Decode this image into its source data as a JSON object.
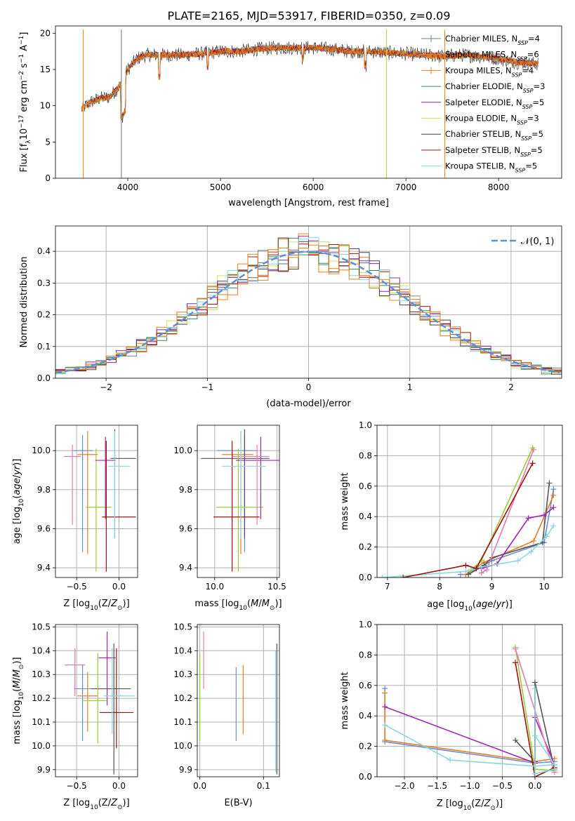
{
  "figure_title": "PLATE=2165, MJD=53917, FIBERID=0350, z=0.09",
  "colors": {
    "grid": "#b0b0b0",
    "gauss": "#5b8fd8",
    "series": [
      "#708090",
      "#ff7f0e",
      "#e67e22",
      "#2e8b57",
      "#8e24aa",
      "#d4e157",
      "#444444",
      "#a01010",
      "#7fd8e0"
    ],
    "model": [
      "#6a8fd0",
      "#e67e22",
      "#555555",
      "#9acd32",
      "#9c27b0",
      "#e07cb0",
      "#a01010",
      "#88d8dc"
    ]
  },
  "legend": [
    {
      "label": "Chabrier MILES, N_SSP=4"
    },
    {
      "label": "Salpeter MILES, N_SSP=6"
    },
    {
      "label": "Kroupa MILES, N_SSP=4"
    },
    {
      "label": "Chabrier ELODIE, N_SSP=3"
    },
    {
      "label": "Salpeter ELODIE, N_SSP=5"
    },
    {
      "label": "Kroupa ELODIE, N_SSP=3"
    },
    {
      "label": "Chabrier STELIB, N_SSP=5"
    },
    {
      "label": "Salpeter STELIB, N_SSP=5"
    },
    {
      "label": "Kroupa STELIB, N_SSP=5"
    }
  ],
  "legend_text": [
    {
      "pre": "Chabrier MILES, N",
      "sub": "SSP",
      "post": "=4"
    },
    {
      "pre": "Salpeter MILES, N",
      "sub": "SSP",
      "post": "=6"
    },
    {
      "pre": "Kroupa MILES, N",
      "sub": "SSP",
      "post": "=4"
    },
    {
      "pre": "Chabrier ELODIE, N",
      "sub": "SSP",
      "post": "=3"
    },
    {
      "pre": "Salpeter ELODIE, N",
      "sub": "SSP",
      "post": "=5"
    },
    {
      "pre": "Kroupa ELODIE, N",
      "sub": "SSP",
      "post": "=3"
    },
    {
      "pre": "Chabrier STELIB, N",
      "sub": "SSP",
      "post": "=5"
    },
    {
      "pre": "Salpeter STELIB, N",
      "sub": "SSP",
      "post": "=5"
    },
    {
      "pre": "Kroupa STELIB, N",
      "sub": "SSP",
      "post": "=5"
    }
  ],
  "chart_data": [
    {
      "id": "spectrum",
      "type": "line",
      "xlabel": "wavelength [Angstrom, rest frame]",
      "ylabel": "Flux [f_λ 10^-17 erg cm^-2 s^-1 A^-1]",
      "xlim": [
        3220,
        8680
      ],
      "ylim": [
        0,
        21
      ],
      "xticks": [
        4000,
        5000,
        6000,
        7000,
        8000
      ],
      "yticks": [
        0,
        5,
        10,
        15,
        20
      ],
      "continuum": {
        "x": [
          3500,
          3600,
          3700,
          3800,
          3900,
          4000,
          4100,
          4200,
          4400,
          4600,
          4800,
          5000,
          5200,
          5400,
          5600,
          5800,
          6000,
          6200,
          6400,
          6600,
          6800,
          7000,
          7200,
          7400,
          7600,
          7800,
          8000,
          8200,
          8400
        ],
        "y": [
          9.5,
          10.5,
          11.0,
          11.2,
          12.5,
          15.0,
          16.5,
          17.0,
          17.0,
          17.0,
          17.2,
          17.5,
          17.5,
          17.8,
          18.0,
          18.0,
          18.0,
          17.8,
          17.5,
          17.5,
          17.3,
          17.2,
          17.0,
          16.8,
          17.0,
          16.8,
          16.5,
          16.0,
          15.8
        ]
      },
      "spikes": [
        {
          "x": 3930,
          "series": 5
        },
        {
          "x": 3931,
          "series": 0
        },
        {
          "x": 6790,
          "series": 0
        },
        {
          "x": 6792,
          "series": 5
        },
        {
          "x": 7420,
          "series": 1
        },
        {
          "x": 3520,
          "series": 1
        }
      ],
      "x_start": 3500,
      "x_end": 8430
    },
    {
      "id": "residuals",
      "type": "histogram",
      "xlabel": "(data-model)/error",
      "ylabel": "Normed distribution",
      "xlim": [
        -2.5,
        2.5
      ],
      "ylim": [
        0,
        0.48
      ],
      "xticks": [
        -2,
        -1,
        0,
        1,
        2
      ],
      "yticks": [
        0.0,
        0.1,
        0.2,
        0.3,
        0.4
      ],
      "gauss_label": "N(0,1)",
      "bin_width": 0.1
    },
    {
      "id": "age_vs_Z",
      "type": "scatter",
      "xlabel": "Z [log10(Z/Z☉)]",
      "ylabel": "age [log10(age/yr)]",
      "xlim": [
        -0.75,
        0.22
      ],
      "ylim": [
        9.35,
        10.13
      ],
      "xticks": [
        -0.5,
        0.0
      ],
      "yticks": [
        9.4,
        9.6,
        9.8,
        10.0
      ],
      "points": [
        {
          "x": -0.43,
          "xerr": [
            0.12,
            0.12
          ],
          "y": 10.0,
          "yerr": [
            0.52,
            0.08
          ],
          "color": 0
        },
        {
          "x": -0.37,
          "xerr": [
            0.12,
            0.12
          ],
          "y": 9.98,
          "yerr": [
            0.51,
            0.12
          ],
          "color": 1
        },
        {
          "x": -0.05,
          "xerr": [
            0.05,
            0.25
          ],
          "y": 9.96,
          "yerr": [
            0.41,
            0.15
          ],
          "color": 2
        },
        {
          "x": -0.27,
          "xerr": [
            0.12,
            0.18
          ],
          "y": 9.71,
          "yerr": [
            0.33,
            0.3
          ],
          "color": 3
        },
        {
          "x": -0.16,
          "xerr": [
            0.12,
            0.12
          ],
          "y": 9.95,
          "yerr": [
            0.3,
            0.12
          ],
          "color": 4
        },
        {
          "x": -0.55,
          "xerr": [
            0.1,
            0.1
          ],
          "y": 9.97,
          "yerr": [
            0.35,
            0.06
          ],
          "color": 5
        },
        {
          "x": -0.15,
          "xerr": [
            0.05,
            0.35
          ],
          "y": 9.66,
          "yerr": [
            0.28,
            0.39
          ],
          "color": 6
        },
        {
          "x": -0.05,
          "xerr": [
            0.08,
            0.18
          ],
          "y": 9.92,
          "yerr": [
            0.37,
            0.18
          ],
          "color": 7
        }
      ]
    },
    {
      "id": "age_vs_mass",
      "type": "scatter",
      "xlabel": "mass [log10(M/M☉)]",
      "ylabel": "",
      "xlim": [
        9.86,
        10.52
      ],
      "ylim": [
        9.35,
        10.13
      ],
      "xticks": [
        10.0,
        10.5
      ],
      "yticks": [
        9.4,
        9.6,
        9.8,
        10.0
      ],
      "points": [
        {
          "x": 10.24,
          "xerr": [
            0.22,
            0.1
          ],
          "y": 10.0,
          "yerr": [
            0.52,
            0.08
          ],
          "color": 0
        },
        {
          "x": 10.21,
          "xerr": [
            0.15,
            0.1
          ],
          "y": 9.98,
          "yerr": [
            0.51,
            0.12
          ],
          "color": 1
        },
        {
          "x": 10.24,
          "xerr": [
            0.35,
            0.2
          ],
          "y": 9.96,
          "yerr": [
            0.41,
            0.15
          ],
          "color": 2
        },
        {
          "x": 10.19,
          "xerr": [
            0.18,
            0.2
          ],
          "y": 9.71,
          "yerr": [
            0.33,
            0.3
          ],
          "color": 3
        },
        {
          "x": 10.37,
          "xerr": [
            0.2,
            0.15
          ],
          "y": 9.95,
          "yerr": [
            0.3,
            0.12
          ],
          "color": 4
        },
        {
          "x": 10.34,
          "xerr": [
            0.2,
            0.1
          ],
          "y": 9.97,
          "yerr": [
            0.35,
            0.06
          ],
          "color": 5
        },
        {
          "x": 10.14,
          "xerr": [
            0.15,
            0.22
          ],
          "y": 9.66,
          "yerr": [
            0.28,
            0.39
          ],
          "color": 6
        },
        {
          "x": 10.21,
          "xerr": [
            0.15,
            0.2
          ],
          "y": 9.92,
          "yerr": [
            0.37,
            0.18
          ],
          "color": 7
        }
      ]
    },
    {
      "id": "weight_vs_age",
      "type": "line",
      "xlabel": "age [log10(age/yr)]",
      "ylabel": "mass weight",
      "xlim": [
        6.8,
        10.35
      ],
      "ylim": [
        0.0,
        1.0
      ],
      "xticks": [
        7,
        8,
        9,
        10
      ],
      "yticks": [
        0.0,
        0.2,
        0.4,
        0.6,
        0.8,
        1.0
      ],
      "series": [
        {
          "color": 0,
          "x": [
            8.4,
            8.5,
            8.8,
            9.0,
            10.0,
            10.18
          ],
          "y": [
            0.02,
            0.02,
            0.07,
            0.11,
            0.23,
            0.58
          ]
        },
        {
          "color": 1,
          "x": [
            8.5,
            8.85,
            9.8,
            10.18
          ],
          "y": [
            0.02,
            0.1,
            0.24,
            0.54
          ]
        },
        {
          "color": 2,
          "x": [
            8.55,
            8.85,
            9.0,
            9.97,
            10.1
          ],
          "y": [
            0.02,
            0.08,
            0.13,
            0.23,
            0.62
          ]
        },
        {
          "color": 3,
          "x": [
            8.6,
            8.8,
            9.78
          ],
          "y": [
            0.05,
            0.11,
            0.85
          ]
        },
        {
          "color": 4,
          "x": [
            8.8,
            9.1,
            9.7,
            10.0,
            10.18
          ],
          "y": [
            0.06,
            0.09,
            0.39,
            0.41,
            0.46
          ]
        },
        {
          "color": 5,
          "x": [
            8.8,
            8.9,
            9.8
          ],
          "y": [
            0.03,
            0.05,
            0.84
          ]
        },
        {
          "color": 7,
          "x": [
            6.9,
            8.5,
            8.8,
            9.5,
            9.75,
            10.05,
            10.18
          ],
          "y": [
            0.0,
            0.04,
            0.07,
            0.11,
            0.17,
            0.27,
            0.34
          ]
        },
        {
          "color": 6,
          "x": [
            7.3,
            8.5,
            8.7,
            9.78
          ],
          "y": [
            0.0,
            0.08,
            0.06,
            0.75
          ]
        }
      ]
    },
    {
      "id": "mass_vs_Z",
      "type": "scatter",
      "xlabel": "Z [log10(Z/Z☉)]",
      "ylabel": "mass [log10(M/M☉)]",
      "xlim": [
        -0.75,
        0.22
      ],
      "ylim": [
        9.87,
        10.51
      ],
      "xticks": [
        -0.5,
        0.0
      ],
      "yticks": [
        9.9,
        10.0,
        10.1,
        10.2,
        10.3,
        10.4,
        10.5
      ],
      "points": [
        {
          "x": -0.43,
          "xerr": [
            0.1,
            0.1
          ],
          "y": 10.24,
          "yerr": [
            0.22,
            0.1
          ],
          "color": 0
        },
        {
          "x": -0.37,
          "xerr": [
            0.12,
            0.12
          ],
          "y": 10.21,
          "yerr": [
            0.15,
            0.1
          ],
          "color": 1
        },
        {
          "x": -0.06,
          "xerr": [
            0.27,
            0.2
          ],
          "y": 10.24,
          "yerr": [
            0.36,
            0.19
          ],
          "color": 2
        },
        {
          "x": -0.25,
          "xerr": [
            0.17,
            0.1
          ],
          "y": 10.19,
          "yerr": [
            0.18,
            0.2
          ],
          "color": 3
        },
        {
          "x": -0.14,
          "xerr": [
            0.1,
            0.1
          ],
          "y": 10.37,
          "yerr": [
            0.2,
            0.11
          ],
          "color": 4
        },
        {
          "x": -0.52,
          "xerr": [
            0.12,
            0.12
          ],
          "y": 10.34,
          "yerr": [
            0.13,
            0.07
          ],
          "color": 5
        },
        {
          "x": -0.03,
          "xerr": [
            0.2,
            0.2
          ],
          "y": 10.14,
          "yerr": [
            0.15,
            0.27
          ],
          "color": 6
        },
        {
          "x": -0.08,
          "xerr": [
            0.1,
            0.27
          ],
          "y": 10.21,
          "yerr": [
            0.16,
            0.2
          ],
          "color": 7
        }
      ]
    },
    {
      "id": "mass_vs_EBV",
      "type": "scatter",
      "xlabel": "E(B-V)",
      "ylabel": "",
      "xlim": [
        -0.004,
        0.125
      ],
      "ylim": [
        9.87,
        10.51
      ],
      "xticks": [
        0.0,
        0.1
      ],
      "yticks": [
        9.9,
        10.0,
        10.1,
        10.2,
        10.3,
        10.4,
        10.5
      ],
      "points": [
        {
          "x": 0.057,
          "y": 10.24,
          "yerr": [
            0.22,
            0.09
          ],
          "color": 0
        },
        {
          "x": 0.068,
          "y": 10.21,
          "yerr": [
            0.16,
            0.13
          ],
          "color": 1
        },
        {
          "x": 0.121,
          "y": 10.24,
          "yerr": [
            0.36,
            0.19
          ],
          "color": 2
        },
        {
          "x": 0.0,
          "y": 10.19,
          "yerr": [
            0.17,
            0.2
          ],
          "color": 3
        },
        {
          "x": 0.006,
          "y": 10.37,
          "yerr": [
            0.13,
            0.11
          ],
          "color": 5
        },
        {
          "x": 0.119,
          "y": 10.21,
          "yerr": [
            0.32,
            0.19
          ],
          "color": 7
        }
      ]
    },
    {
      "id": "weight_vs_Z",
      "type": "line",
      "xlabel": "Z [log10(Z/Z☉)]",
      "ylabel": "mass weight",
      "xlim": [
        -2.42,
        0.42
      ],
      "ylim": [
        0.0,
        1.0
      ],
      "xticks": [
        -2.0,
        -1.5,
        -1.0,
        -0.5,
        0.0
      ],
      "yticks": [
        0.0,
        0.2,
        0.4,
        0.6,
        0.8,
        1.0
      ],
      "series": [
        {
          "color": 0,
          "x": [
            -2.3,
            -2.3,
            0.0,
            0.3
          ],
          "y": [
            0.58,
            0.23,
            0.09,
            0.1
          ]
        },
        {
          "color": 1,
          "x": [
            -2.3,
            -2.3,
            0.0,
            0.3
          ],
          "y": [
            0.55,
            0.24,
            0.1,
            0.12
          ]
        },
        {
          "color": 2,
          "x": [
            -0.3,
            0.0,
            0.0,
            0.3
          ],
          "y": [
            0.24,
            0.1,
            0.62,
            0.05
          ]
        },
        {
          "color": 3,
          "x": [
            -0.3,
            0.0,
            0.3
          ],
          "y": [
            0.85,
            0.05,
            0.04
          ]
        },
        {
          "color": 4,
          "x": [
            -2.3,
            0.0,
            0.0,
            0.3
          ],
          "y": [
            0.46,
            0.09,
            0.39,
            0.08
          ]
        },
        {
          "color": 5,
          "x": [
            -0.3,
            0.3
          ],
          "y": [
            0.84,
            0.03
          ]
        },
        {
          "color": 6,
          "x": [
            -0.3,
            0.0,
            0.3
          ],
          "y": [
            0.75,
            0.0,
            0.06
          ]
        },
        {
          "color": 7,
          "x": [
            -2.3,
            -1.3,
            0.0,
            0.3,
            0.0
          ],
          "y": [
            0.34,
            0.11,
            0.07,
            0.08,
            0.27
          ]
        },
        {
          "color": 8,
          "x": [
            0.0,
            0.0,
            0.3
          ],
          "y": [
            0.58,
            0.02,
            0.05
          ]
        }
      ]
    }
  ]
}
